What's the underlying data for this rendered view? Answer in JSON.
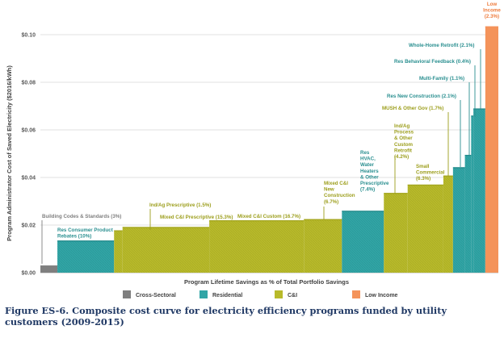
{
  "chart_data": {
    "type": "bar",
    "subtype": "supply-cost-curve (variable-width bars)",
    "xlabel": "Program Lifetime Savings as % of Total Portfolio Savings",
    "ylabel": "Program Administrator Cost of Saved Electricity ($2016/kWh)",
    "ylim": [
      0,
      0.1
    ],
    "yticks": [
      "$0.00",
      "$0.02",
      "$0.04",
      "$0.06",
      "$0.08",
      "$0.10"
    ],
    "grid": true,
    "legend_position": "bottom",
    "legend": [
      {
        "name": "Cross-Sectoral",
        "color": "#7f7f7f"
      },
      {
        "name": "Residential",
        "color": "#31a5a6"
      },
      {
        "name": "C&I",
        "color": "#b8ba2a"
      },
      {
        "name": "Low Income",
        "color": "#f4935a"
      }
    ],
    "programs": [
      {
        "label": "Building Codes & Standards (3%)",
        "sector": "Cross-Sectoral",
        "share_pct": 3,
        "cost": 0.003
      },
      {
        "label": "Res Consumer Product Rebates (10%)",
        "sector": "Residential",
        "share_pct": 10,
        "cost": 0.0135
      },
      {
        "label": "Ind/Ag Prescriptive (1.5%)",
        "sector": "C&I",
        "share_pct": 1.5,
        "cost": 0.0178
      },
      {
        "label": "Mixed C&I Prescriptive (15.3%)",
        "sector": "C&I",
        "share_pct": 15.3,
        "cost": 0.0192
      },
      {
        "label": "Mixed C&I Custom (16.7%)",
        "sector": "C&I",
        "share_pct": 16.7,
        "cost": 0.022
      },
      {
        "label": "Mixed C&I New Construction (6.7%)",
        "sector": "C&I",
        "share_pct": 6.7,
        "cost": 0.0225
      },
      {
        "label": "Res HVAC, Water Heaters & Other Prescriptive (7.4%)",
        "sector": "Residential",
        "share_pct": 7.4,
        "cost": 0.026
      },
      {
        "label": "Ind/Ag Process & Other Custom Retrofit (4.2%)",
        "sector": "C&I",
        "share_pct": 4.2,
        "cost": 0.0335
      },
      {
        "label": "Small Commercial (6.3%)",
        "sector": "C&I",
        "share_pct": 6.3,
        "cost": 0.037
      },
      {
        "label": "MUSH & Other Gov (1.7%)",
        "sector": "C&I",
        "share_pct": 1.7,
        "cost": 0.0408
      },
      {
        "label": "Res New Construction (2.1%)",
        "sector": "Residential",
        "share_pct": 2.1,
        "cost": 0.0443
      },
      {
        "label": "Multi-Family (1.1%)",
        "sector": "Residential",
        "share_pct": 1.1,
        "cost": 0.0495
      },
      {
        "label": "Res Behavioral Feedback (0.4%)",
        "sector": "Residential",
        "share_pct": 0.4,
        "cost": 0.066
      },
      {
        "label": "Whole-Home Retrofit (2.1%)",
        "sector": "Residential",
        "share_pct": 2.1,
        "cost": 0.069
      },
      {
        "label": "Low Income (2.3%)",
        "sector": "Low Income",
        "share_pct": 2.3,
        "cost": 0.1035
      }
    ]
  },
  "caption": "Figure ES-6. Composite cost curve for electricity efficiency programs funded by utility customers (2009-2015)"
}
